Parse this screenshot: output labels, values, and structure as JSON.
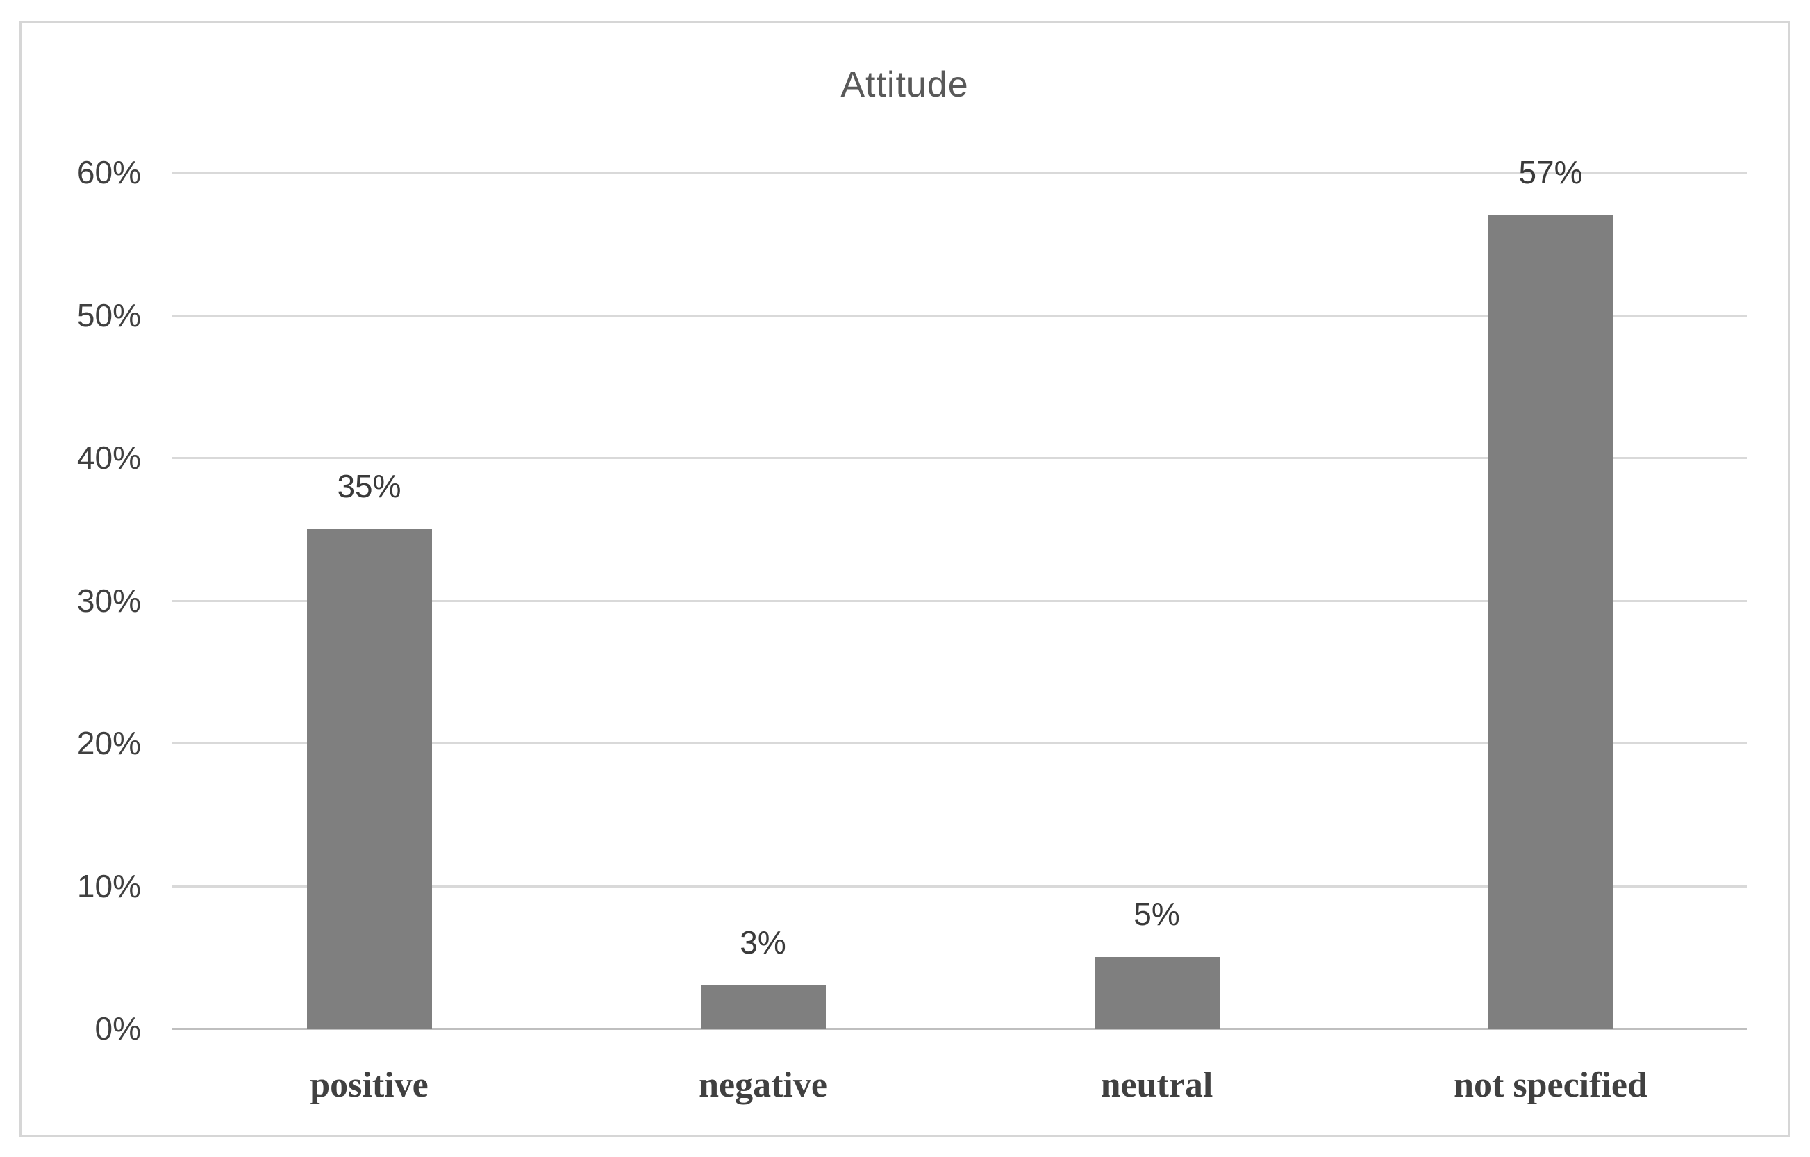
{
  "chart_data": {
    "type": "bar",
    "title": "Attitude",
    "categories": [
      "positive",
      "negative",
      "neutral",
      "not specified"
    ],
    "values": [
      35,
      3,
      5,
      57
    ],
    "data_labels": [
      "35%",
      "3%",
      "5%",
      "57%"
    ],
    "xlabel": "",
    "ylabel": "",
    "ylim": [
      0,
      60
    ],
    "y_tick_interval": 10,
    "y_tick_labels": [
      "0%",
      "10%",
      "20%",
      "30%",
      "40%",
      "50%",
      "60%"
    ],
    "gridlines": "horizontal",
    "legend_position": "none",
    "bar_color": "#7f7f7f"
  },
  "style": {
    "bar_color": "#7f7f7f",
    "gridline_color": "#d9d9d9",
    "axis_line_color": "#bfbfbf",
    "frame_border_color": "#d6d6d6",
    "title_color": "#595959",
    "tick_label_color": "#404040",
    "data_label_color": "#3a3a3a",
    "category_label_color": "#404040",
    "background_color": "#ffffff"
  }
}
